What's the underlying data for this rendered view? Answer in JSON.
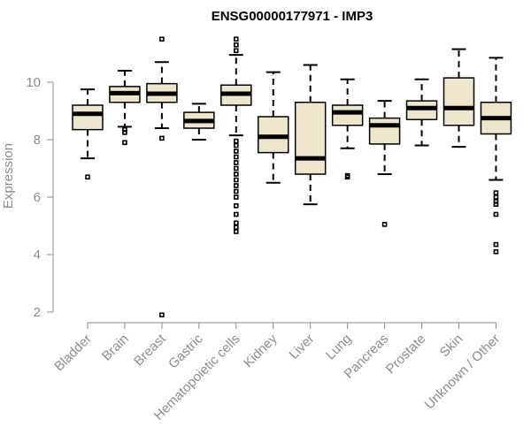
{
  "chart_data": {
    "type": "boxplot",
    "title": "ENSG00000177971 - IMP3",
    "xlabel": "",
    "ylabel": "Expression",
    "ylim": [
      1.5,
      11.8
    ],
    "yticks": [
      2,
      4,
      6,
      8,
      10
    ],
    "grid": false,
    "box_color": "#ede6cc",
    "categories": [
      "Bladder",
      "Brain",
      "Breast",
      "Gastric",
      "Hematopoietic cells",
      "Kidney",
      "Liver",
      "Lung",
      "Pancreas",
      "Prostate",
      "Skin",
      "Unknown / Other"
    ],
    "boxes": [
      {
        "name": "Bladder",
        "min": 7.35,
        "q1": 8.35,
        "median": 8.9,
        "q3": 9.2,
        "max": 9.75,
        "outliers": [
          6.7
        ]
      },
      {
        "name": "Brain",
        "min": 8.45,
        "q1": 9.3,
        "median": 9.62,
        "q3": 9.85,
        "max": 10.4,
        "outliers": [
          8.35,
          8.25,
          7.9
        ]
      },
      {
        "name": "Breast",
        "min": 8.4,
        "q1": 9.3,
        "median": 9.6,
        "q3": 9.95,
        "max": 10.7,
        "outliers": [
          11.5,
          8.05,
          1.9
        ]
      },
      {
        "name": "Gastric",
        "min": 8.0,
        "q1": 8.4,
        "median": 8.65,
        "q3": 8.95,
        "max": 9.25,
        "outliers": []
      },
      {
        "name": "Hematopoietic cells",
        "min": 8.15,
        "q1": 9.2,
        "median": 9.6,
        "q3": 9.9,
        "max": 10.95,
        "outliers": [
          11.5,
          11.3,
          11.1,
          7.95,
          7.8,
          7.6,
          7.4,
          7.2,
          7.0,
          6.8,
          6.6,
          6.4,
          6.2,
          6.0,
          5.7,
          5.4,
          5.1,
          4.95,
          4.8
        ]
      },
      {
        "name": "Kidney",
        "min": 6.5,
        "q1": 7.55,
        "median": 8.1,
        "q3": 8.8,
        "max": 10.35,
        "outliers": []
      },
      {
        "name": "Liver",
        "min": 5.75,
        "q1": 6.8,
        "median": 7.35,
        "q3": 9.3,
        "max": 10.6,
        "outliers": []
      },
      {
        "name": "Lung",
        "min": 7.7,
        "q1": 8.5,
        "median": 8.95,
        "q3": 9.2,
        "max": 10.1,
        "outliers": [
          6.75,
          6.7
        ]
      },
      {
        "name": "Pancreas",
        "min": 6.8,
        "q1": 7.85,
        "median": 8.5,
        "q3": 8.75,
        "max": 9.35,
        "outliers": [
          5.05
        ]
      },
      {
        "name": "Prostate",
        "min": 7.8,
        "q1": 8.7,
        "median": 9.1,
        "q3": 9.35,
        "max": 10.1,
        "outliers": []
      },
      {
        "name": "Skin",
        "min": 7.75,
        "q1": 8.5,
        "median": 9.1,
        "q3": 10.15,
        "max": 11.15,
        "outliers": []
      },
      {
        "name": "Unknown / Other",
        "min": 6.6,
        "q1": 8.2,
        "median": 8.75,
        "q3": 9.3,
        "max": 10.85,
        "outliers": [
          6.15,
          6.0,
          5.85,
          5.75,
          5.4,
          4.35,
          4.1
        ]
      }
    ]
  }
}
